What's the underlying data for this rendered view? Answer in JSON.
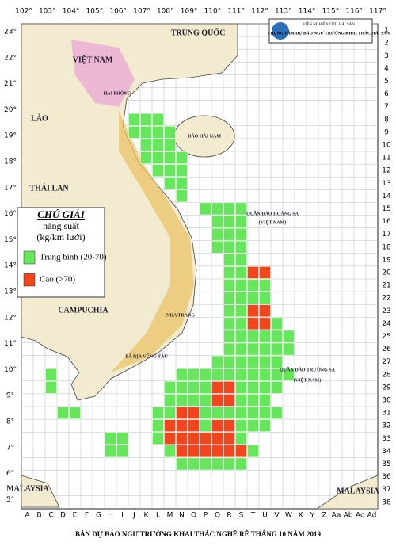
{
  "logo": {
    "institute": "VIỆN NGHIÊN CỨU HẢI SẢN",
    "center": "TRUNG TÂM DỰ BÁO NGƯ TRƯỜNG KHAI THÁC HẢI SẢN"
  },
  "longitudes": [
    "102°",
    "103°",
    "104°",
    "105°",
    "106°",
    "107°",
    "108°",
    "109°",
    "110°",
    "111°",
    "112°",
    "113°",
    "114°",
    "115°",
    "116°",
    "117°"
  ],
  "latitudes": [
    "23°",
    "22°",
    "21°",
    "20°",
    "19°",
    "18°",
    "17°",
    "16°",
    "15°",
    "14°",
    "13°",
    "12°",
    "11°",
    "10°",
    "9°",
    "8°",
    "7°",
    "6°",
    "5°"
  ],
  "columns": [
    "A",
    "B",
    "C",
    "D",
    "E",
    "F",
    "G",
    "H",
    "I",
    "J",
    "K",
    "L",
    "M",
    "N",
    "O",
    "P",
    "Q",
    "R",
    "S",
    "T",
    "U",
    "V",
    "W",
    "X",
    "Y",
    "Z",
    "Aa",
    "Ab",
    "Ac",
    "Ad"
  ],
  "rows": [
    1,
    2,
    3,
    4,
    5,
    6,
    7,
    8,
    9,
    10,
    11,
    12,
    13,
    14,
    15,
    16,
    17,
    18,
    19,
    20,
    21,
    22,
    23,
    24,
    25,
    26,
    27,
    28,
    29,
    30,
    31,
    32,
    33,
    34,
    35,
    36,
    37,
    38
  ],
  "place_names": [
    "VIỆT NAM",
    "TRUNG QUỐC",
    "LÀO",
    "THÁI LAN",
    "CAMPUCHIA",
    "MALAYSIA",
    "MALAYSIA",
    "HẢI PHÒNG",
    "ĐẢO HẢI NAM",
    "NHA TRANG",
    "BÀ RỊA VŨNG TÀU",
    "QUẦN ĐẢO HOÀNG SA",
    "(VIỆT NAM)",
    "QUẦN ĐẢO TRƯỜNG SA",
    "(VIỆT NAM)"
  ],
  "legend": {
    "title": "CHÚ GIẢI",
    "subtitle": "năng suất",
    "unit": "(kg/km lưới)",
    "items": [
      {
        "label": "Trung bình (20-70)",
        "color": "#66e65a"
      },
      {
        "label": "Cao (>70)",
        "color": "#f2451c"
      }
    ]
  },
  "cells": [
    [
      [
        "J",
        8
      ],
      [
        "K",
        8
      ],
      [
        "L",
        8
      ],
      [
        "J",
        9
      ],
      [
        "K",
        9
      ],
      [
        "L",
        9
      ],
      [
        "M",
        9
      ],
      [
        "K",
        10
      ],
      [
        "L",
        10
      ],
      [
        "M",
        10
      ],
      [
        "K",
        11
      ],
      [
        "L",
        11
      ],
      [
        "M",
        11
      ],
      [
        "N",
        11
      ],
      [
        "L",
        12
      ],
      [
        "M",
        12
      ],
      [
        "N",
        12
      ],
      [
        "M",
        13
      ],
      [
        "N",
        13
      ],
      [
        "N",
        14
      ],
      [
        "P",
        15
      ],
      [
        "Q",
        15
      ],
      [
        "R",
        15
      ],
      [
        "S",
        15
      ],
      [
        "Q",
        16
      ],
      [
        "R",
        16
      ],
      [
        "S",
        16
      ],
      [
        "Q",
        17
      ],
      [
        "R",
        17
      ],
      [
        "S",
        17
      ],
      [
        "Q",
        18
      ],
      [
        "R",
        18
      ],
      [
        "S",
        18
      ],
      [
        "R",
        19
      ],
      [
        "S",
        19
      ],
      [
        "R",
        20
      ],
      [
        "S",
        20
      ],
      [
        "R",
        21
      ],
      [
        "S",
        21
      ],
      [
        "T",
        21
      ],
      [
        "U",
        21
      ],
      [
        "R",
        22
      ],
      [
        "S",
        22
      ],
      [
        "T",
        22
      ],
      [
        "U",
        22
      ],
      [
        "R",
        23
      ],
      [
        "S",
        23
      ],
      [
        "R",
        24
      ],
      [
        "S",
        24
      ],
      [
        "V",
        24
      ],
      [
        "R",
        25
      ],
      [
        "S",
        25
      ],
      [
        "T",
        25
      ],
      [
        "U",
        25
      ],
      [
        "V",
        25
      ],
      [
        "W",
        25
      ],
      [
        "R",
        26
      ],
      [
        "S",
        26
      ],
      [
        "T",
        26
      ],
      [
        "U",
        26
      ],
      [
        "V",
        26
      ],
      [
        "W",
        26
      ],
      [
        "Q",
        27
      ],
      [
        "R",
        27
      ],
      [
        "S",
        27
      ],
      [
        "T",
        27
      ],
      [
        "U",
        27
      ],
      [
        "V",
        27
      ],
      [
        "C",
        28
      ],
      [
        "N",
        28
      ],
      [
        "O",
        28
      ],
      [
        "P",
        28
      ],
      [
        "Q",
        28
      ],
      [
        "R",
        28
      ],
      [
        "S",
        28
      ],
      [
        "T",
        28
      ],
      [
        "U",
        28
      ],
      [
        "V",
        28
      ],
      [
        "W",
        28
      ],
      [
        "C",
        29
      ],
      [
        "M",
        29
      ],
      [
        "N",
        29
      ],
      [
        "O",
        29
      ],
      [
        "P",
        29
      ],
      [
        "S",
        29
      ],
      [
        "T",
        29
      ],
      [
        "U",
        29
      ],
      [
        "V",
        29
      ],
      [
        "M",
        30
      ],
      [
        "N",
        30
      ],
      [
        "O",
        30
      ],
      [
        "P",
        30
      ],
      [
        "S",
        30
      ],
      [
        "T",
        30
      ],
      [
        "U",
        30
      ],
      [
        "D",
        31
      ],
      [
        "E",
        31
      ],
      [
        "L",
        31
      ],
      [
        "M",
        31
      ],
      [
        "P",
        31
      ],
      [
        "Q",
        31
      ],
      [
        "R",
        31
      ],
      [
        "S",
        31
      ],
      [
        "T",
        31
      ],
      [
        "U",
        31
      ],
      [
        "V",
        31
      ],
      [
        "L",
        32
      ],
      [
        "P",
        32
      ],
      [
        "S",
        32
      ],
      [
        "T",
        32
      ],
      [
        "U",
        32
      ],
      [
        "H",
        33
      ],
      [
        "I",
        33
      ],
      [
        "L",
        33
      ],
      [
        "S",
        33
      ],
      [
        "H",
        34
      ],
      [
        "I",
        34
      ],
      [
        "M",
        34
      ],
      [
        "T",
        34
      ],
      [
        "N",
        35
      ],
      [
        "O",
        35
      ],
      [
        "P",
        35
      ],
      [
        "Q",
        35
      ],
      [
        "R",
        35
      ],
      [
        "S",
        35
      ]
    ],
    [
      [
        "T",
        20
      ],
      [
        "U",
        20
      ],
      [
        "T",
        23
      ],
      [
        "U",
        23
      ],
      [
        "T",
        24
      ],
      [
        "U",
        24
      ],
      [
        "Q",
        29
      ],
      [
        "R",
        29
      ],
      [
        "Q",
        30
      ],
      [
        "R",
        30
      ],
      [
        "N",
        31
      ],
      [
        "O",
        31
      ],
      [
        "M",
        32
      ],
      [
        "N",
        32
      ],
      [
        "O",
        32
      ],
      [
        "Q",
        32
      ],
      [
        "R",
        32
      ],
      [
        "M",
        33
      ],
      [
        "N",
        33
      ],
      [
        "O",
        33
      ],
      [
        "P",
        33
      ],
      [
        "Q",
        33
      ],
      [
        "R",
        33
      ],
      [
        "N",
        34
      ],
      [
        "O",
        34
      ],
      [
        "P",
        34
      ],
      [
        "Q",
        34
      ],
      [
        "R",
        34
      ],
      [
        "S",
        34
      ]
    ]
  ],
  "caption": "BẢN DỰ BÁO NGƯ TRƯỜNG KHAI THÁC NGHỀ RÊ THÁNG 10 NĂM 2019"
}
